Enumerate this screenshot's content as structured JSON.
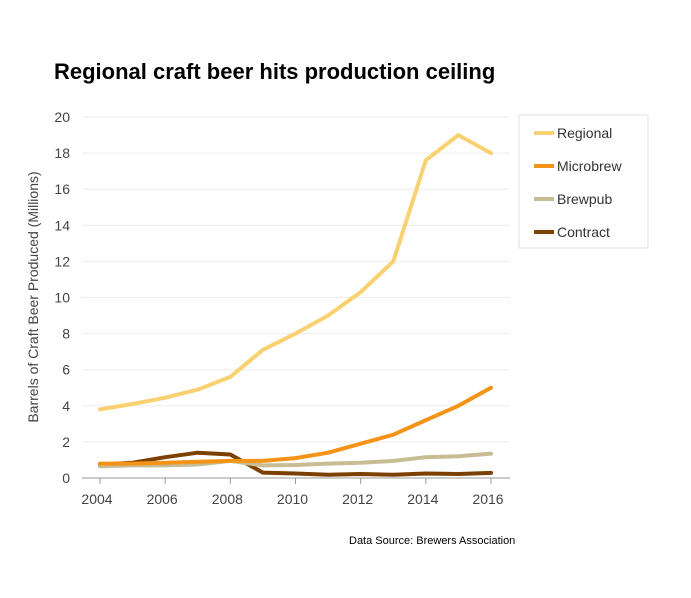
{
  "chart_data": {
    "type": "line",
    "title": "Regional craft beer hits production ceiling",
    "xlabel": "",
    "ylabel": "Barrels of Craft Beer Produced (Millions)",
    "source": "Data Source: Brewers Association",
    "x": [
      2004,
      2005,
      2006,
      2007,
      2008,
      2009,
      2010,
      2011,
      2012,
      2013,
      2014,
      2015,
      2016
    ],
    "xticks": [
      2004,
      2006,
      2008,
      2010,
      2012,
      2014,
      2016
    ],
    "yticks": [
      0,
      2,
      4,
      6,
      8,
      10,
      12,
      14,
      16,
      18,
      20
    ],
    "xlim": [
      2004,
      2016
    ],
    "ylim": [
      0,
      20
    ],
    "grid": true,
    "legend_position": "right",
    "series": [
      {
        "name": "Regional",
        "color": "#fad171",
        "values": [
          3.8,
          4.1,
          4.45,
          4.9,
          5.6,
          7.1,
          8.0,
          9.0,
          10.3,
          12.0,
          17.6,
          19.0,
          18.0
        ]
      },
      {
        "name": "Microbrew",
        "color": "#f39419",
        "values": [
          0.8,
          0.8,
          0.85,
          0.9,
          0.95,
          0.95,
          1.1,
          1.4,
          1.9,
          2.4,
          3.2,
          4.0,
          5.0
        ]
      },
      {
        "name": "Brewpub",
        "color": "#c8bc94",
        "values": [
          0.65,
          0.7,
          0.7,
          0.75,
          0.95,
          0.7,
          0.72,
          0.8,
          0.85,
          0.95,
          1.15,
          1.2,
          1.35
        ]
      },
      {
        "name": "Contract",
        "color": "#7b3f00",
        "values": [
          0.75,
          0.85,
          1.15,
          1.4,
          1.3,
          0.3,
          0.25,
          0.18,
          0.22,
          0.18,
          0.25,
          0.22,
          0.28
        ]
      }
    ]
  }
}
